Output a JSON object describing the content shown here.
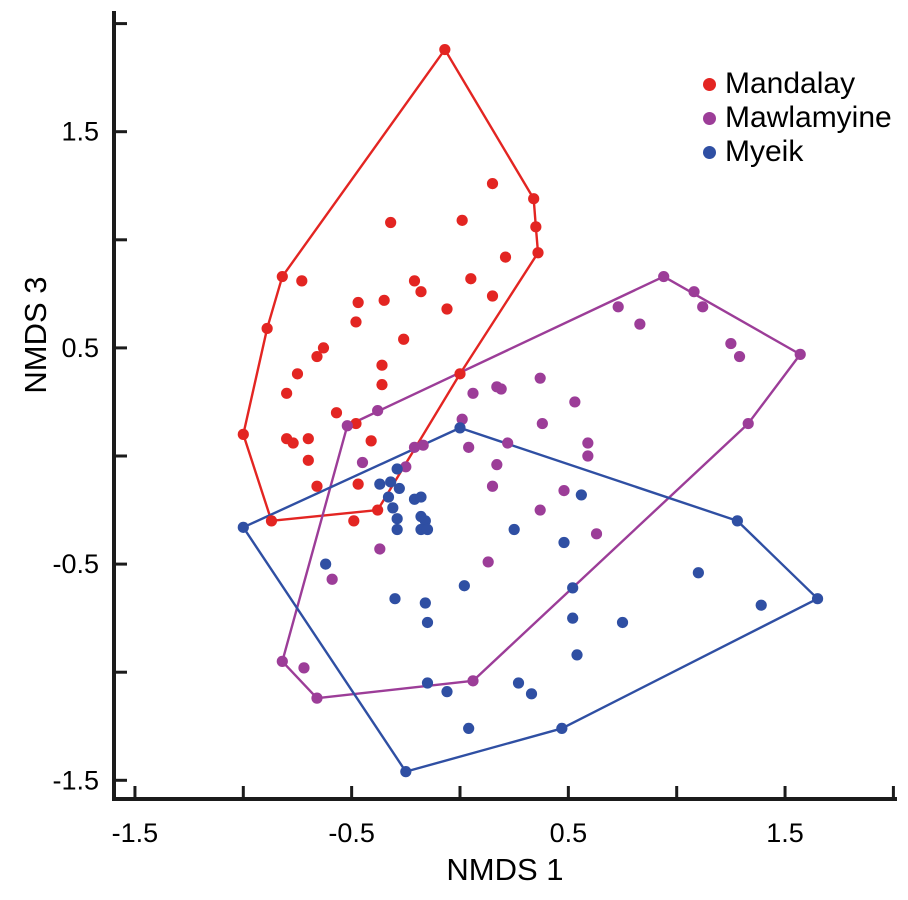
{
  "chart_data": {
    "type": "scatter",
    "title": "",
    "xlabel": "NMDS 1",
    "ylabel": "NMDS 3",
    "xlim": [
      -1.6,
      2.02
    ],
    "ylim": [
      -1.57,
      2.06
    ],
    "grid": false,
    "legend_position": "top-right",
    "x_ticks": [
      {
        "v": -1.5,
        "label": "-1.5"
      },
      {
        "v": -1.0,
        "label": ""
      },
      {
        "v": -0.5,
        "label": "-0.5"
      },
      {
        "v": 0.0,
        "label": ""
      },
      {
        "v": 0.5,
        "label": "0.5"
      },
      {
        "v": 1.0,
        "label": ""
      },
      {
        "v": 1.5,
        "label": "1.5"
      },
      {
        "v": 2.0,
        "label": ""
      }
    ],
    "y_ticks": [
      {
        "v": -1.5,
        "label": "-1.5"
      },
      {
        "v": -1.0,
        "label": ""
      },
      {
        "v": -0.5,
        "label": "-0.5"
      },
      {
        "v": 0.0,
        "label": ""
      },
      {
        "v": 0.5,
        "label": "0.5"
      },
      {
        "v": 1.0,
        "label": ""
      },
      {
        "v": 1.5,
        "label": "1.5"
      },
      {
        "v": 2.0,
        "label": ""
      }
    ],
    "series": [
      {
        "id": "mandalay",
        "name": "Mandalay",
        "color": "#e32522",
        "points": [
          [
            -0.07,
            1.88
          ],
          [
            0.15,
            1.26
          ],
          [
            0.34,
            1.19
          ],
          [
            0.01,
            1.09
          ],
          [
            -0.32,
            1.08
          ],
          [
            0.35,
            1.06
          ],
          [
            0.36,
            0.94
          ],
          [
            0.21,
            0.92
          ],
          [
            0.05,
            0.82
          ],
          [
            0.15,
            0.74
          ],
          [
            -0.06,
            0.68
          ],
          [
            -0.18,
            0.76
          ],
          [
            -0.82,
            0.83
          ],
          [
            -0.73,
            0.81
          ],
          [
            -0.21,
            0.81
          ],
          [
            -0.47,
            0.71
          ],
          [
            -0.35,
            0.72
          ],
          [
            -0.48,
            0.62
          ],
          [
            -0.89,
            0.59
          ],
          [
            -0.63,
            0.5
          ],
          [
            -0.66,
            0.46
          ],
          [
            -0.26,
            0.54
          ],
          [
            -0.36,
            0.42
          ],
          [
            -0.75,
            0.38
          ],
          [
            -0.8,
            0.29
          ],
          [
            -0.36,
            0.33
          ],
          [
            -1.0,
            0.1
          ],
          [
            -0.57,
            0.2
          ],
          [
            -0.48,
            0.15
          ],
          [
            -0.41,
            0.07
          ],
          [
            -0.8,
            0.08
          ],
          [
            -0.77,
            0.06
          ],
          [
            -0.7,
            0.08
          ],
          [
            -0.7,
            -0.02
          ],
          [
            -0.66,
            -0.14
          ],
          [
            -0.47,
            -0.13
          ],
          [
            -0.87,
            -0.3
          ],
          [
            -0.49,
            -0.3
          ],
          [
            -0.38,
            -0.25
          ],
          [
            0.0,
            0.38
          ]
        ],
        "hull": [
          [
            -0.07,
            1.88
          ],
          [
            0.34,
            1.19
          ],
          [
            0.35,
            1.06
          ],
          [
            0.36,
            0.94
          ],
          [
            0.0,
            0.38
          ],
          [
            -0.38,
            -0.25
          ],
          [
            -0.87,
            -0.3
          ],
          [
            -1.0,
            0.1
          ],
          [
            -0.89,
            0.59
          ],
          [
            -0.82,
            0.83
          ]
        ]
      },
      {
        "id": "mawlamyine",
        "name": "Mawlamyine",
        "color": "#9c3d98",
        "points": [
          [
            0.94,
            0.83
          ],
          [
            1.08,
            0.76
          ],
          [
            1.12,
            0.69
          ],
          [
            1.57,
            0.47
          ],
          [
            1.25,
            0.52
          ],
          [
            1.29,
            0.46
          ],
          [
            1.33,
            0.15
          ],
          [
            0.73,
            0.69
          ],
          [
            0.83,
            0.61
          ],
          [
            -0.38,
            0.21
          ],
          [
            -0.52,
            0.14
          ],
          [
            0.06,
            0.29
          ],
          [
            0.17,
            0.32
          ],
          [
            0.19,
            0.31
          ],
          [
            0.37,
            0.36
          ],
          [
            0.38,
            0.15
          ],
          [
            0.53,
            0.25
          ],
          [
            0.01,
            0.17
          ],
          [
            0.22,
            0.06
          ],
          [
            0.04,
            0.04
          ],
          [
            0.17,
            -0.04
          ],
          [
            0.59,
            0.06
          ],
          [
            0.59,
            0.0
          ],
          [
            -0.21,
            0.04
          ],
          [
            -0.17,
            0.05
          ],
          [
            -0.45,
            -0.03
          ],
          [
            -0.25,
            -0.05
          ],
          [
            -0.82,
            -0.95
          ],
          [
            -0.72,
            -0.98
          ],
          [
            -0.66,
            -1.12
          ],
          [
            0.06,
            -1.04
          ],
          [
            0.15,
            -0.14
          ],
          [
            0.48,
            -0.16
          ],
          [
            0.37,
            -0.25
          ],
          [
            0.63,
            -0.36
          ],
          [
            0.13,
            -0.49
          ],
          [
            -0.37,
            -0.43
          ],
          [
            -0.59,
            -0.57
          ]
        ],
        "hull": [
          [
            -0.52,
            0.14
          ],
          [
            0.94,
            0.83
          ],
          [
            1.57,
            0.47
          ],
          [
            1.33,
            0.15
          ],
          [
            0.06,
            -1.04
          ],
          [
            -0.66,
            -1.12
          ],
          [
            -0.82,
            -0.95
          ]
        ]
      },
      {
        "id": "myeik",
        "name": "Myeik",
        "color": "#2f4fa3",
        "points": [
          [
            -1.0,
            -0.33
          ],
          [
            0.0,
            0.13
          ],
          [
            1.28,
            -0.3
          ],
          [
            1.65,
            -0.66
          ],
          [
            -0.25,
            -1.46
          ],
          [
            0.47,
            -1.26
          ],
          [
            1.1,
            -0.54
          ],
          [
            1.39,
            -0.69
          ],
          [
            -0.62,
            -0.5
          ],
          [
            -0.3,
            -0.66
          ],
          [
            -0.16,
            -0.68
          ],
          [
            -0.15,
            -0.77
          ],
          [
            0.02,
            -0.6
          ],
          [
            0.52,
            -0.61
          ],
          [
            0.52,
            -0.75
          ],
          [
            0.75,
            -0.77
          ],
          [
            0.54,
            -0.92
          ],
          [
            0.56,
            -0.18
          ],
          [
            0.25,
            -0.34
          ],
          [
            0.48,
            -0.4
          ],
          [
            0.27,
            -1.05
          ],
          [
            0.33,
            -1.1
          ],
          [
            -0.06,
            -1.09
          ],
          [
            -0.15,
            -1.05
          ],
          [
            0.04,
            -1.26
          ],
          [
            -0.29,
            -0.06
          ],
          [
            -0.32,
            -0.12
          ],
          [
            -0.37,
            -0.13
          ],
          [
            -0.28,
            -0.15
          ],
          [
            -0.33,
            -0.19
          ],
          [
            -0.21,
            -0.2
          ],
          [
            -0.18,
            -0.19
          ],
          [
            -0.31,
            -0.24
          ],
          [
            -0.29,
            -0.29
          ],
          [
            -0.18,
            -0.28
          ],
          [
            -0.16,
            -0.3
          ],
          [
            -0.29,
            -0.34
          ],
          [
            -0.18,
            -0.34
          ],
          [
            -0.15,
            -0.34
          ]
        ],
        "hull": [
          [
            -1.0,
            -0.33
          ],
          [
            0.0,
            0.13
          ],
          [
            1.28,
            -0.3
          ],
          [
            1.65,
            -0.66
          ],
          [
            0.47,
            -1.26
          ],
          [
            -0.25,
            -1.46
          ]
        ]
      }
    ]
  }
}
